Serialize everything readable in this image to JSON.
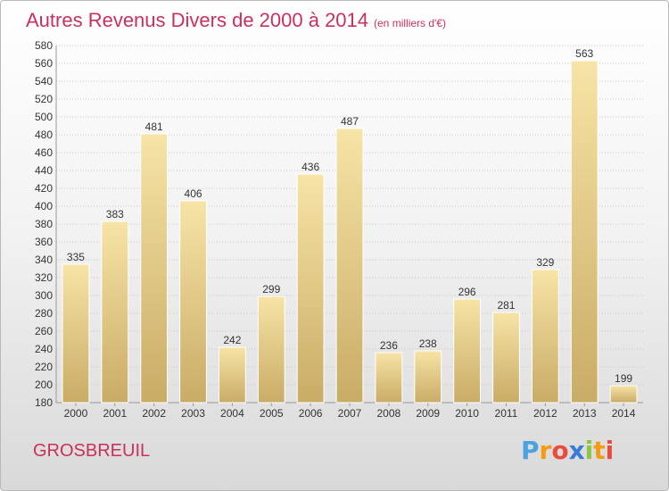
{
  "header": {
    "title": "Autres Revenus Divers de 2000 à 2014",
    "subtitle": "(en milliers d'€)"
  },
  "footer": {
    "place": "GROSBREUIL",
    "logo_letters": [
      "P",
      "r",
      "o",
      "x",
      "i",
      "t",
      "i"
    ]
  },
  "colors": {
    "title": "#c8315c",
    "bar_light": "#f7e4a6",
    "bar_dark": "#c9ac66",
    "grid": "#c8c8c8",
    "text": "#333333",
    "logo": [
      "#4aa3df",
      "#f39c12",
      "#e74c3c",
      "#3a7bd5",
      "#8cc63f",
      "#f39c12",
      "#e74c3c"
    ]
  },
  "chart_data": {
    "type": "bar",
    "categories": [
      "2000",
      "2001",
      "2002",
      "2003",
      "2004",
      "2005",
      "2006",
      "2007",
      "2008",
      "2009",
      "2010",
      "2011",
      "2012",
      "2013",
      "2014"
    ],
    "values": [
      335,
      383,
      481,
      406,
      242,
      299,
      436,
      487,
      236,
      238,
      296,
      281,
      329,
      563,
      199
    ],
    "ylim": [
      180,
      580
    ],
    "ytick_step": 20,
    "grid": true
  }
}
